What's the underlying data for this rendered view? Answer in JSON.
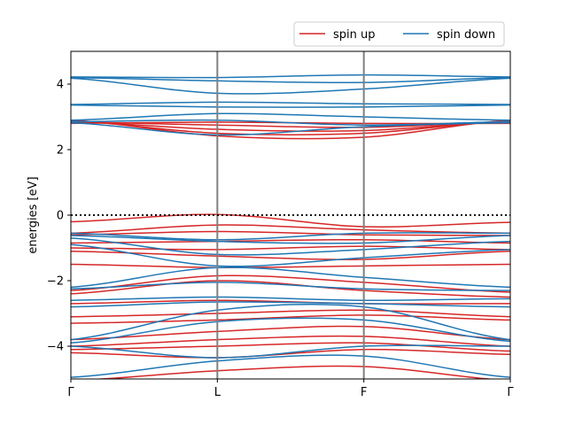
{
  "chart_data": {
    "type": "line",
    "title": "",
    "xlabel": "",
    "ylabel": "energies [eV]",
    "ylim": [
      -5,
      5
    ],
    "y_ticks": [
      -4,
      -2,
      0,
      2,
      4
    ],
    "y_tick_labels": [
      "−4",
      "−2",
      "0",
      "2",
      "4"
    ],
    "x_points": [
      0,
      1,
      2,
      3
    ],
    "x_tick_labels": [
      "Γ",
      "L",
      "F",
      "Γ"
    ],
    "high_symmetry_line_color": "#808080",
    "fermi_level": 0,
    "fermi_line_style": "dotted",
    "grid": false,
    "legend": {
      "placement": "top-right-outside",
      "ncol": 2
    },
    "series": [
      {
        "name": "spin up",
        "color": "#d62728",
        "bands": [
          [
            [
              0,
              2.8
            ],
            [
              1,
              2.84
            ],
            [
              2,
              2.8
            ],
            [
              3,
              2.8
            ]
          ],
          [
            [
              0,
              2.84
            ],
            [
              1,
              2.75
            ],
            [
              2,
              2.68
            ],
            [
              3,
              2.84
            ]
          ],
          [
            [
              0,
              2.86
            ],
            [
              1,
              2.62
            ],
            [
              2,
              2.58
            ],
            [
              3,
              2.86
            ]
          ],
          [
            [
              0,
              2.88
            ],
            [
              1,
              2.5
            ],
            [
              2,
              2.5
            ],
            [
              3,
              2.88
            ]
          ],
          [
            [
              0,
              2.9
            ],
            [
              1,
              2.42
            ],
            [
              2,
              2.38
            ],
            [
              3,
              2.9
            ]
          ],
          [
            [
              0,
              -0.2
            ],
            [
              1,
              0.02
            ],
            [
              2,
              -0.35
            ],
            [
              3,
              -0.22
            ]
          ],
          [
            [
              0,
              -0.55
            ],
            [
              1,
              -0.3
            ],
            [
              2,
              -0.45
            ],
            [
              3,
              -0.55
            ]
          ],
          [
            [
              0,
              -0.6
            ],
            [
              1,
              -0.5
            ],
            [
              2,
              -0.6
            ],
            [
              3,
              -0.62
            ]
          ],
          [
            [
              0,
              -0.85
            ],
            [
              1,
              -0.8
            ],
            [
              2,
              -0.75
            ],
            [
              3,
              -0.85
            ]
          ],
          [
            [
              0,
              -1.0
            ],
            [
              1,
              -1.05
            ],
            [
              2,
              -0.95
            ],
            [
              3,
              -1.05
            ]
          ],
          [
            [
              0,
              -1.1
            ],
            [
              1,
              -1.25
            ],
            [
              2,
              -1.35
            ],
            [
              3,
              -1.1
            ]
          ],
          [
            [
              0,
              -1.5
            ],
            [
              1,
              -1.6
            ],
            [
              2,
              -1.55
            ],
            [
              3,
              -1.5
            ]
          ],
          [
            [
              0,
              -2.3
            ],
            [
              1,
              -1.85
            ],
            [
              2,
              -2.05
            ],
            [
              3,
              -2.35
            ]
          ],
          [
            [
              0,
              -2.4
            ],
            [
              1,
              -2.0
            ],
            [
              2,
              -2.3
            ],
            [
              3,
              -2.5
            ]
          ],
          [
            [
              0,
              -2.7
            ],
            [
              1,
              -2.6
            ],
            [
              2,
              -2.7
            ],
            [
              3,
              -2.7
            ]
          ],
          [
            [
              0,
              -3.1
            ],
            [
              1,
              -3.0
            ],
            [
              2,
              -2.9
            ],
            [
              3,
              -3.1
            ]
          ],
          [
            [
              0,
              -3.3
            ],
            [
              1,
              -3.2
            ],
            [
              2,
              -3.05
            ],
            [
              3,
              -3.2
            ]
          ],
          [
            [
              0,
              -3.8
            ],
            [
              1,
              -3.55
            ],
            [
              2,
              -3.4
            ],
            [
              3,
              -3.8
            ]
          ],
          [
            [
              0,
              -4.0
            ],
            [
              1,
              -3.8
            ],
            [
              2,
              -3.7
            ],
            [
              3,
              -4.0
            ]
          ],
          [
            [
              0,
              -4.1
            ],
            [
              1,
              -4.0
            ],
            [
              2,
              -3.9
            ],
            [
              3,
              -4.15
            ]
          ],
          [
            [
              0,
              -4.2
            ],
            [
              1,
              -4.35
            ],
            [
              2,
              -4.1
            ],
            [
              3,
              -4.25
            ]
          ],
          [
            [
              0,
              -5.05
            ],
            [
              1,
              -4.75
            ],
            [
              2,
              -4.62
            ],
            [
              3,
              -5.05
            ]
          ]
        ]
      },
      {
        "name": "spin down",
        "color": "#1f77b4",
        "bands": [
          [
            [
              0,
              4.22
            ],
            [
              1,
              4.2
            ],
            [
              2,
              4.28
            ],
            [
              3,
              4.22
            ]
          ],
          [
            [
              0,
              4.2
            ],
            [
              1,
              4.1
            ],
            [
              2,
              4.05
            ],
            [
              3,
              4.2
            ]
          ],
          [
            [
              0,
              4.18
            ],
            [
              1,
              3.72
            ],
            [
              2,
              3.85
            ],
            [
              3,
              4.18
            ]
          ],
          [
            [
              0,
              3.38
            ],
            [
              1,
              3.45
            ],
            [
              2,
              3.4
            ],
            [
              3,
              3.38
            ]
          ],
          [
            [
              0,
              3.36
            ],
            [
              1,
              3.3
            ],
            [
              2,
              3.3
            ],
            [
              3,
              3.36
            ]
          ],
          [
            [
              0,
              2.9
            ],
            [
              1,
              3.1
            ],
            [
              2,
              3.0
            ],
            [
              3,
              2.9
            ]
          ],
          [
            [
              0,
              2.85
            ],
            [
              1,
              2.9
            ],
            [
              2,
              2.75
            ],
            [
              3,
              2.85
            ]
          ],
          [
            [
              0,
              2.82
            ],
            [
              1,
              2.45
            ],
            [
              2,
              2.7
            ],
            [
              3,
              2.82
            ]
          ],
          [
            [
              0,
              -0.55
            ],
            [
              1,
              -0.75
            ],
            [
              2,
              -0.55
            ],
            [
              3,
              -0.55
            ]
          ],
          [
            [
              0,
              -0.62
            ],
            [
              1,
              -0.8
            ],
            [
              2,
              -0.85
            ],
            [
              3,
              -0.62
            ]
          ],
          [
            [
              0,
              -0.7
            ],
            [
              1,
              -1.2
            ],
            [
              2,
              -1.05
            ],
            [
              3,
              -0.8
            ]
          ],
          [
            [
              0,
              -0.9
            ],
            [
              1,
              -1.55
            ],
            [
              2,
              -1.3
            ],
            [
              3,
              -1.05
            ]
          ],
          [
            [
              0,
              -2.2
            ],
            [
              1,
              -1.6
            ],
            [
              2,
              -1.9
            ],
            [
              3,
              -2.2
            ]
          ],
          [
            [
              0,
              -2.25
            ],
            [
              1,
              -2.05
            ],
            [
              2,
              -2.25
            ],
            [
              3,
              -2.3
            ]
          ],
          [
            [
              0,
              -2.6
            ],
            [
              1,
              -2.5
            ],
            [
              2,
              -2.6
            ],
            [
              3,
              -2.55
            ]
          ],
          [
            [
              0,
              -2.8
            ],
            [
              1,
              -2.65
            ],
            [
              2,
              -2.7
            ],
            [
              3,
              -2.8
            ]
          ],
          [
            [
              0,
              -3.8
            ],
            [
              1,
              -2.9
            ],
            [
              2,
              -2.8
            ],
            [
              3,
              -3.8
            ]
          ],
          [
            [
              0,
              -3.9
            ],
            [
              1,
              -3.25
            ],
            [
              2,
              -3.2
            ],
            [
              3,
              -3.85
            ]
          ],
          [
            [
              0,
              -4.0
            ],
            [
              1,
              -4.35
            ],
            [
              2,
              -4.0
            ],
            [
              3,
              -4.0
            ]
          ],
          [
            [
              0,
              -4.95
            ],
            [
              1,
              -4.45
            ],
            [
              2,
              -4.3
            ],
            [
              3,
              -4.95
            ]
          ]
        ]
      }
    ]
  }
}
